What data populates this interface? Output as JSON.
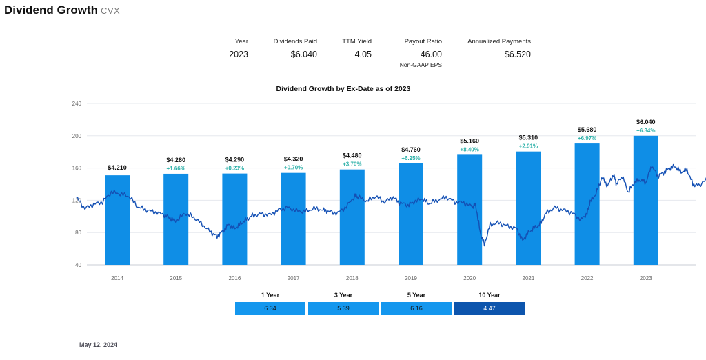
{
  "header": {
    "title": "Dividend Growth",
    "ticker": "CVX"
  },
  "stats": [
    {
      "label": "Year",
      "value": "2023",
      "sub": ""
    },
    {
      "label": "Dividends Paid",
      "value": "$6.040",
      "sub": ""
    },
    {
      "label": "TTM Yield",
      "value": "4.05",
      "sub": ""
    },
    {
      "label": "Payout Ratio",
      "value": "46.00",
      "sub": "Non-GAAP EPS"
    },
    {
      "label": "Annualized Payments",
      "value": "$6.520",
      "sub": ""
    }
  ],
  "chart_data": {
    "type": "bar",
    "title": "Dividend Growth by Ex-Date as of 2023",
    "categories": [
      "2014",
      "2015",
      "2016",
      "2017",
      "2018",
      "2019",
      "2020",
      "2021",
      "2022",
      "2023"
    ],
    "values": [
      4.21,
      4.28,
      4.29,
      4.32,
      4.48,
      4.76,
      5.16,
      5.31,
      5.68,
      6.04
    ],
    "value_labels": [
      "$4.210",
      "$4.280",
      "$4.290",
      "$4.320",
      "$4.480",
      "$4.760",
      "$5.160",
      "$5.310",
      "$5.680",
      "$6.040"
    ],
    "growth_labels": [
      "",
      "+1.66%",
      "+0.23%",
      "+0.70%",
      "+3.70%",
      "+6.25%",
      "+8.40%",
      "+2.91%",
      "+6.97%",
      "+6.34%"
    ],
    "y_ticks": [
      "240",
      "200",
      "160",
      "120",
      "80",
      "40"
    ],
    "ylim": [
      40,
      240
    ],
    "bar_color": "#0f8ee6",
    "price_line": {
      "color": "#1450b4",
      "x": [
        2013.3,
        2013.45,
        2013.6,
        2013.75,
        2013.9,
        2014.05,
        2014.2,
        2014.35,
        2014.5,
        2014.65,
        2014.8,
        2014.9,
        2015.0,
        2015.15,
        2015.3,
        2015.45,
        2015.6,
        2015.7,
        2015.8,
        2015.9,
        2016.0,
        2016.1,
        2016.2,
        2016.3,
        2016.45,
        2016.6,
        2016.75,
        2016.9,
        2017.05,
        2017.2,
        2017.35,
        2017.5,
        2017.6,
        2017.75,
        2017.9,
        2018.05,
        2018.1,
        2018.25,
        2018.4,
        2018.55,
        2018.7,
        2018.8,
        2018.95,
        2019.05,
        2019.2,
        2019.3,
        2019.45,
        2019.6,
        2019.75,
        2019.9,
        2020.05,
        2020.1,
        2020.18,
        2020.25,
        2020.35,
        2020.5,
        2020.65,
        2020.8,
        2020.9,
        2021.0,
        2021.1,
        2021.2,
        2021.3,
        2021.45,
        2021.6,
        2021.75,
        2021.9,
        2022.0,
        2022.05,
        2022.15,
        2022.25,
        2022.35,
        2022.45,
        2022.5,
        2022.6,
        2022.7,
        2022.8,
        2022.9,
        2023.0,
        2023.1,
        2023.2,
        2023.3,
        2023.4,
        2023.5,
        2023.6,
        2023.7,
        2023.8,
        2023.9,
        2024.1,
        2024.2,
        2024.3,
        2024.37
      ],
      "y": [
        124,
        110,
        115,
        118,
        130,
        128,
        125,
        112,
        108,
        105,
        102,
        98,
        94,
        104,
        99,
        90,
        80,
        75,
        82,
        90,
        85,
        91,
        96,
        101,
        103,
        102,
        108,
        111,
        107,
        106,
        110,
        108,
        106,
        104,
        112,
        126,
        124,
        119,
        125,
        118,
        124,
        117,
        114,
        118,
        122,
        116,
        120,
        124,
        118,
        117,
        112,
        115,
        80,
        65,
        90,
        92,
        88,
        85,
        70,
        80,
        86,
        90,
        104,
        111,
        108,
        104,
        96,
        104,
        118,
        128,
        148,
        138,
        152,
        140,
        150,
        130,
        142,
        145,
        142,
        163,
        150,
        154,
        160,
        162,
        155,
        158,
        140,
        138,
        152,
        156,
        160,
        165
      ]
    }
  },
  "cagr": [
    {
      "label": "1 Year",
      "value": "6.34",
      "color": "#1497ee"
    },
    {
      "label": "3 Year",
      "value": "5.39",
      "color": "#1497ee"
    },
    {
      "label": "5 Year",
      "value": "6.16",
      "color": "#1497ee"
    },
    {
      "label": "10 Year",
      "value": "4.47",
      "color": "#0d55ad"
    }
  ],
  "footer": {
    "date": "May 12, 2024"
  }
}
